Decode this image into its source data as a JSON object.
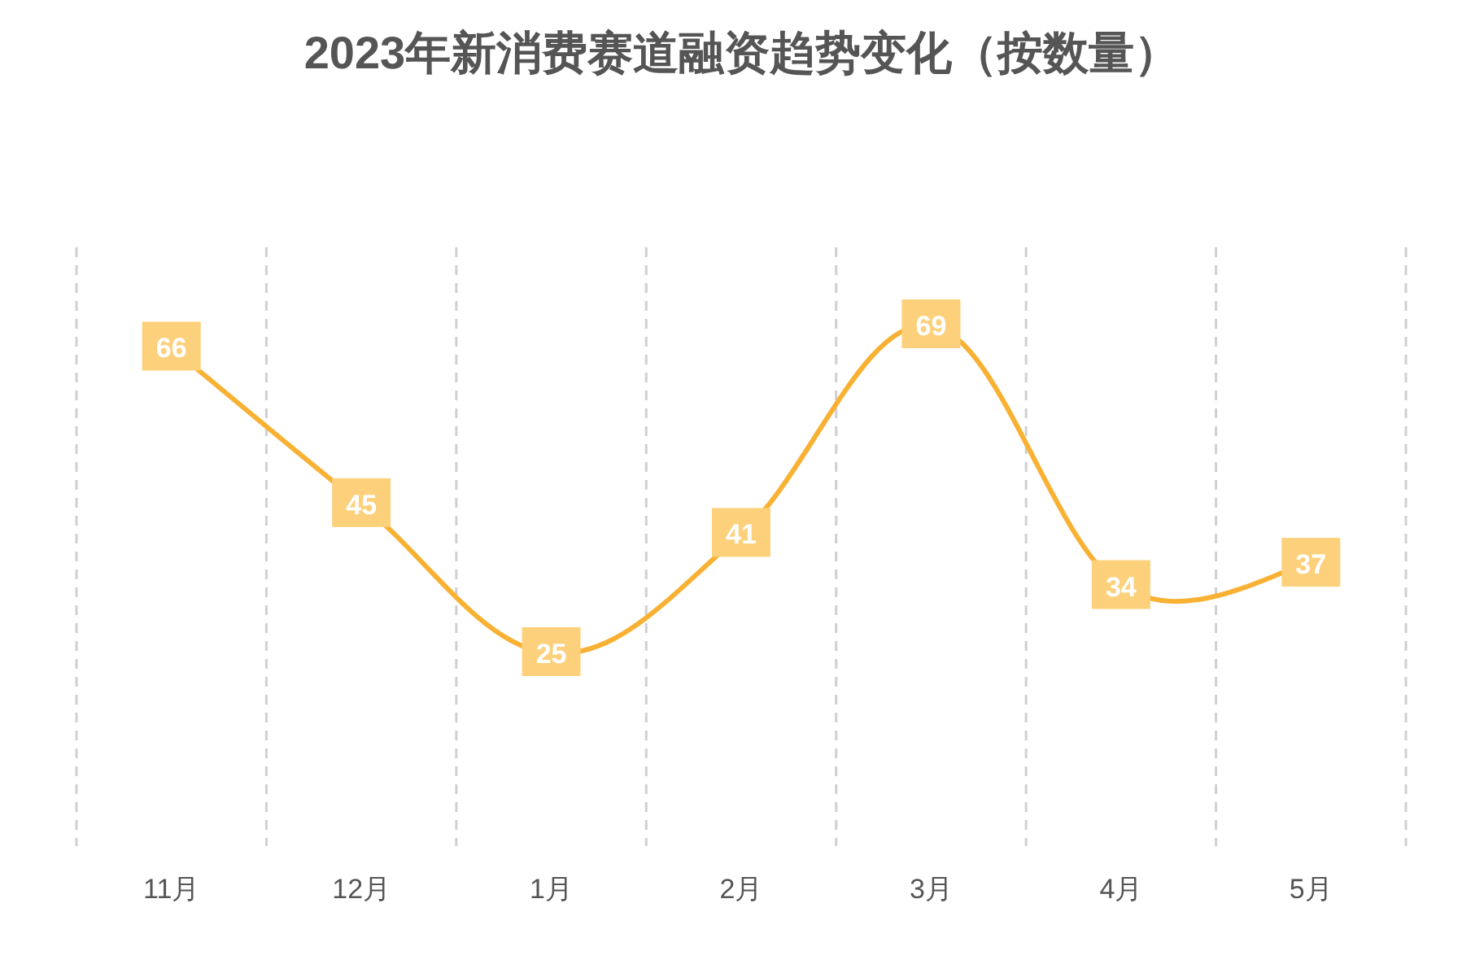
{
  "chart_data": {
    "type": "line",
    "title": "2023年新消费赛道融资趋势变化（按数量）",
    "categories": [
      "11月",
      "12月",
      "1月",
      "2月",
      "3月",
      "4月",
      "5月"
    ],
    "series": [
      {
        "color": "#f8b133",
        "values": [
          66,
          45,
          25,
          41,
          69,
          34,
          37
        ]
      }
    ],
    "grid": "x",
    "marker": "square",
    "data_labels": true,
    "tick_labels": "x"
  }
}
